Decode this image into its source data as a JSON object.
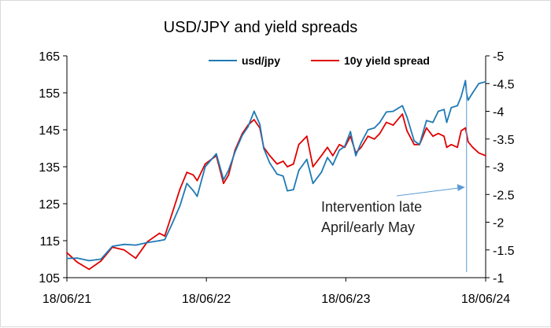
{
  "chart_data": {
    "type": "line",
    "title": "USD/JPY and yield spreads",
    "xlabel": "",
    "ylabel": "",
    "x_ticks": [
      "18/06/21",
      "18/06/22",
      "18/06/23",
      "18/06/24"
    ],
    "y_left": {
      "ylim": [
        105,
        165
      ],
      "ticks": [
        "165",
        "155",
        "145",
        "135",
        "125",
        "115",
        "105"
      ]
    },
    "y_right": {
      "ylim": [
        -1,
        -5
      ],
      "inverted": true,
      "ticks": [
        "-5",
        "-4.5",
        "-4",
        "-3.5",
        "-3",
        "-2.5",
        "-2",
        "-1.5",
        "-1"
      ]
    },
    "legend": {
      "placement": "top"
    },
    "grid": false,
    "colors": {
      "usdjpy": "#1f7ab5",
      "spread": "#e00000",
      "annotation": "#5b9bd5"
    },
    "series": [
      {
        "name": "usd/jpy",
        "axis": "left",
        "x": [
          "2021-06-18",
          "2021-07-15",
          "2021-08-15",
          "2021-09-15",
          "2021-10-15",
          "2021-11-15",
          "2021-12-15",
          "2022-01-15",
          "2022-02-15",
          "2022-03-01",
          "2022-03-20",
          "2022-04-10",
          "2022-04-28",
          "2022-05-15",
          "2022-05-25",
          "2022-06-15",
          "2022-07-14",
          "2022-08-02",
          "2022-08-15",
          "2022-09-01",
          "2022-09-20",
          "2022-10-05",
          "2022-10-21",
          "2022-11-05",
          "2022-11-15",
          "2022-12-01",
          "2022-12-20",
          "2023-01-05",
          "2023-01-16",
          "2023-02-01",
          "2023-02-15",
          "2023-03-08",
          "2023-03-24",
          "2023-04-15",
          "2023-05-01",
          "2023-05-15",
          "2023-06-01",
          "2023-06-15",
          "2023-06-30",
          "2023-07-14",
          "2023-07-28",
          "2023-08-15",
          "2023-09-01",
          "2023-09-15",
          "2023-10-02",
          "2023-10-20",
          "2023-11-13",
          "2023-11-25",
          "2023-12-14",
          "2023-12-28",
          "2024-01-15",
          "2024-02-01",
          "2024-02-15",
          "2024-03-01",
          "2024-03-08",
          "2024-03-20",
          "2024-04-05",
          "2024-04-15",
          "2024-04-26",
          "2024-04-29",
          "2024-05-03",
          "2024-05-15",
          "2024-05-31",
          "2024-06-18"
        ],
        "values": [
          110.2,
          110.3,
          109.6,
          110.0,
          113.5,
          114.0,
          113.8,
          114.5,
          115.0,
          115.3,
          119.5,
          124.5,
          130.5,
          128.5,
          127.0,
          135.0,
          138.5,
          131.5,
          134.0,
          139.0,
          143.5,
          145.8,
          150.0,
          146.5,
          140.0,
          136.0,
          133.0,
          132.5,
          128.5,
          128.8,
          134.0,
          137.0,
          130.5,
          133.5,
          137.5,
          135.5,
          139.5,
          140.5,
          144.5,
          138.0,
          141.5,
          145.0,
          145.5,
          147.0,
          149.8,
          150.0,
          151.5,
          148.5,
          142.0,
          141.0,
          147.5,
          147.0,
          150.0,
          150.5,
          147.0,
          151.0,
          151.5,
          154.0,
          158.3,
          155.0,
          153.0,
          155.0,
          157.5,
          158.0
        ]
      },
      {
        "name": "10y yield spread",
        "axis": "right",
        "x": [
          "2021-06-18",
          "2021-07-15",
          "2021-08-15",
          "2021-09-15",
          "2021-10-15",
          "2021-11-15",
          "2021-12-15",
          "2022-01-15",
          "2022-02-15",
          "2022-03-01",
          "2022-03-20",
          "2022-04-10",
          "2022-04-28",
          "2022-05-15",
          "2022-05-25",
          "2022-06-15",
          "2022-07-14",
          "2022-08-02",
          "2022-08-15",
          "2022-09-01",
          "2022-09-20",
          "2022-10-05",
          "2022-10-21",
          "2022-11-05",
          "2022-11-15",
          "2022-12-01",
          "2022-12-20",
          "2023-01-05",
          "2023-01-16",
          "2023-02-01",
          "2023-02-15",
          "2023-03-08",
          "2023-03-24",
          "2023-04-15",
          "2023-05-01",
          "2023-05-15",
          "2023-06-01",
          "2023-06-15",
          "2023-06-30",
          "2023-07-14",
          "2023-07-28",
          "2023-08-15",
          "2023-09-01",
          "2023-09-15",
          "2023-10-02",
          "2023-10-20",
          "2023-11-13",
          "2023-11-25",
          "2023-12-14",
          "2023-12-28",
          "2024-01-15",
          "2024-02-01",
          "2024-02-15",
          "2024-03-01",
          "2024-03-08",
          "2024-03-20",
          "2024-04-05",
          "2024-04-15",
          "2024-04-26",
          "2024-04-29",
          "2024-05-03",
          "2024-05-15",
          "2024-05-31",
          "2024-06-18"
        ],
        "values": [
          -1.45,
          -1.28,
          -1.15,
          -1.3,
          -1.55,
          -1.5,
          -1.35,
          -1.65,
          -1.8,
          -1.75,
          -2.15,
          -2.6,
          -2.9,
          -2.85,
          -2.75,
          -3.05,
          -3.2,
          -2.7,
          -2.85,
          -3.3,
          -3.6,
          -3.75,
          -3.85,
          -3.7,
          -3.35,
          -3.2,
          -3.05,
          -3.1,
          -3.0,
          -3.05,
          -3.4,
          -3.55,
          -3.0,
          -3.2,
          -3.35,
          -3.2,
          -3.4,
          -3.35,
          -3.55,
          -3.25,
          -3.35,
          -3.55,
          -3.5,
          -3.6,
          -3.8,
          -3.75,
          -3.95,
          -3.65,
          -3.4,
          -3.4,
          -3.7,
          -3.55,
          -3.6,
          -3.55,
          -3.35,
          -3.4,
          -3.35,
          -3.65,
          -3.7,
          -3.6,
          -3.45,
          -3.35,
          -3.25,
          -3.2
        ]
      }
    ],
    "annotations": [
      {
        "text_lines": [
          "Intervention late",
          "April/early May"
        ],
        "points_to": "2024-04-29"
      }
    ]
  }
}
